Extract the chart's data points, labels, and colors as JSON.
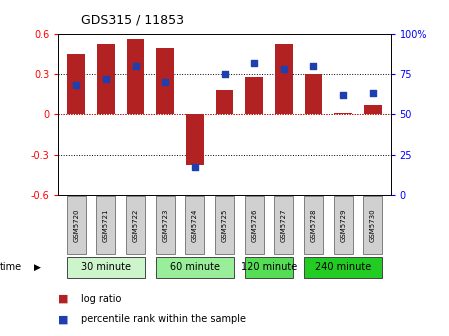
{
  "title": "GDS315 / 11853",
  "samples": [
    "GSM5720",
    "GSM5721",
    "GSM5722",
    "GSM5723",
    "GSM5724",
    "GSM5725",
    "GSM5726",
    "GSM5727",
    "GSM5728",
    "GSM5729",
    "GSM5730"
  ],
  "log_ratio": [
    0.45,
    0.52,
    0.56,
    0.49,
    -0.38,
    0.18,
    0.28,
    0.52,
    0.3,
    0.01,
    0.07
  ],
  "percentile": [
    68,
    72,
    80,
    70,
    17,
    75,
    82,
    78,
    80,
    62,
    63
  ],
  "bar_color": "#b22222",
  "dot_color": "#1e3faf",
  "ylim_left": [
    -0.6,
    0.6
  ],
  "ylim_right": [
    0,
    100
  ],
  "yticks_left": [
    -0.6,
    -0.3,
    0.0,
    0.3,
    0.6
  ],
  "yticks_right": [
    0,
    25,
    50,
    75,
    100
  ],
  "ytick_labels_right": [
    "0",
    "25",
    "50",
    "75",
    "100%"
  ],
  "groups": [
    {
      "label": "30 minute",
      "start": 0,
      "end": 2,
      "color": "#ccf5cc"
    },
    {
      "label": "60 minute",
      "start": 3,
      "end": 5,
      "color": "#99ee99"
    },
    {
      "label": "120 minute",
      "start": 6,
      "end": 7,
      "color": "#55dd55"
    },
    {
      "label": "240 minute",
      "start": 8,
      "end": 10,
      "color": "#22cc22"
    }
  ],
  "time_label": "time",
  "legend_log": "log ratio",
  "legend_pct": "percentile rank within the sample",
  "background_color": "#ffffff",
  "bar_width": 0.6
}
